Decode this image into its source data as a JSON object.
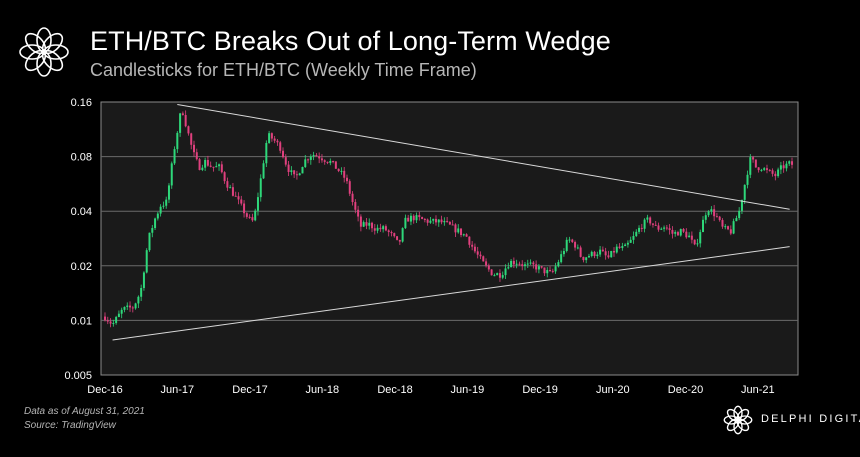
{
  "header": {
    "title": "ETH/BTC Breaks Out of Long-Term Wedge",
    "subtitle": "Candlesticks for ETH/BTC (Weekly Time Frame)"
  },
  "footer": {
    "note_date": "Data as of August 31, 2021",
    "note_source": "Source: TradingView",
    "brand": "DELPHI DIGITAL"
  },
  "colors": {
    "up": "#2ed87a",
    "down": "#e0407e",
    "grid": "#6a6a6a",
    "plot_bg": "#1a1a1a",
    "trendline": "#d9d9d9"
  },
  "icons": [
    "delphi-flower-logo-icon",
    "delphi-digital-logo-icon"
  ],
  "chart_data": {
    "type": "candlestick",
    "title": "ETH/BTC Breaks Out of Long-Term Wedge",
    "subtitle": "Candlesticks for ETH/BTC (Weekly Time Frame)",
    "scale": "log",
    "ylim": [
      0.005,
      0.16
    ],
    "yticks": [
      0.005,
      0.01,
      0.02,
      0.04,
      0.08,
      0.16
    ],
    "ytick_labels": [
      "0.005",
      "0.01",
      "0.02",
      "0.04",
      "0.08",
      "0.16"
    ],
    "xticks": [
      {
        "label": "Dec-16",
        "date": "2016-12-01"
      },
      {
        "label": "Jun-17",
        "date": "2017-06-01"
      },
      {
        "label": "Dec-17",
        "date": "2017-12-01"
      },
      {
        "label": "Jun-18",
        "date": "2018-06-01"
      },
      {
        "label": "Dec-18",
        "date": "2018-12-01"
      },
      {
        "label": "Jun-19",
        "date": "2019-06-01"
      },
      {
        "label": "Dec-19",
        "date": "2019-12-01"
      },
      {
        "label": "Jun-20",
        "date": "2020-06-01"
      },
      {
        "label": "Dec-20",
        "date": "2020-12-01"
      },
      {
        "label": "Jun-21",
        "date": "2021-06-01"
      }
    ],
    "xlim": [
      "2016-12-01",
      "2021-08-31"
    ],
    "grid": true,
    "close_path": [
      [
        "2016-12-01",
        0.0105
      ],
      [
        "2016-12-20",
        0.0095
      ],
      [
        "2017-01-15",
        0.0115
      ],
      [
        "2017-02-10",
        0.0118
      ],
      [
        "2017-03-01",
        0.0145
      ],
      [
        "2017-03-20",
        0.028
      ],
      [
        "2017-04-05",
        0.036
      ],
      [
        "2017-04-20",
        0.043
      ],
      [
        "2017-05-05",
        0.045
      ],
      [
        "2017-05-25",
        0.09
      ],
      [
        "2017-06-12",
        0.15
      ],
      [
        "2017-06-25",
        0.115
      ],
      [
        "2017-07-10",
        0.085
      ],
      [
        "2017-07-25",
        0.07
      ],
      [
        "2017-08-10",
        0.075
      ],
      [
        "2017-08-28",
        0.07
      ],
      [
        "2017-09-15",
        0.07
      ],
      [
        "2017-10-01",
        0.058
      ],
      [
        "2017-10-20",
        0.05
      ],
      [
        "2017-11-10",
        0.042
      ],
      [
        "2017-11-28",
        0.036
      ],
      [
        "2017-12-10",
        0.035
      ],
      [
        "2017-12-28",
        0.06
      ],
      [
        "2018-01-14",
        0.105
      ],
      [
        "2018-01-28",
        0.1
      ],
      [
        "2018-02-15",
        0.09
      ],
      [
        "2018-03-05",
        0.07
      ],
      [
        "2018-03-25",
        0.06
      ],
      [
        "2018-04-15",
        0.075
      ],
      [
        "2018-05-05",
        0.083
      ],
      [
        "2018-05-25",
        0.08
      ],
      [
        "2018-06-20",
        0.075
      ],
      [
        "2018-07-10",
        0.068
      ],
      [
        "2018-07-30",
        0.06
      ],
      [
        "2018-08-20",
        0.042
      ],
      [
        "2018-09-05",
        0.033
      ],
      [
        "2018-09-25",
        0.034
      ],
      [
        "2018-10-15",
        0.032
      ],
      [
        "2018-11-05",
        0.032
      ],
      [
        "2018-11-25",
        0.029
      ],
      [
        "2018-12-10",
        0.026
      ],
      [
        "2018-12-28",
        0.036
      ],
      [
        "2019-01-15",
        0.037
      ],
      [
        "2019-02-05",
        0.036
      ],
      [
        "2019-03-01",
        0.035
      ],
      [
        "2019-03-25",
        0.035
      ],
      [
        "2019-04-20",
        0.033
      ],
      [
        "2019-05-10",
        0.031
      ],
      [
        "2019-05-30",
        0.029
      ],
      [
        "2019-06-20",
        0.024
      ],
      [
        "2019-07-15",
        0.02
      ],
      [
        "2019-08-05",
        0.018
      ],
      [
        "2019-08-25",
        0.018
      ],
      [
        "2019-09-15",
        0.021
      ],
      [
        "2019-10-05",
        0.021
      ],
      [
        "2019-10-25",
        0.02
      ],
      [
        "2019-11-15",
        0.02
      ],
      [
        "2019-12-05",
        0.019
      ],
      [
        "2019-12-30",
        0.018
      ],
      [
        "2020-01-20",
        0.022
      ],
      [
        "2020-02-10",
        0.028
      ],
      [
        "2020-02-28",
        0.026
      ],
      [
        "2020-03-15",
        0.022
      ],
      [
        "2020-04-05",
        0.023
      ],
      [
        "2020-04-30",
        0.024
      ],
      [
        "2020-05-20",
        0.022
      ],
      [
        "2020-06-10",
        0.025
      ],
      [
        "2020-07-01",
        0.025
      ],
      [
        "2020-07-20",
        0.028
      ],
      [
        "2020-08-10",
        0.033
      ],
      [
        "2020-08-30",
        0.036
      ],
      [
        "2020-09-20",
        0.032
      ],
      [
        "2020-10-10",
        0.033
      ],
      [
        "2020-10-30",
        0.03
      ],
      [
        "2020-11-20",
        0.031
      ],
      [
        "2020-12-10",
        0.029
      ],
      [
        "2020-12-25",
        0.025
      ],
      [
        "2021-01-10",
        0.033
      ],
      [
        "2021-01-25",
        0.042
      ],
      [
        "2021-02-15",
        0.038
      ],
      [
        "2021-03-05",
        0.032
      ],
      [
        "2021-03-25",
        0.031
      ],
      [
        "2021-04-15",
        0.04
      ],
      [
        "2021-05-05",
        0.065
      ],
      [
        "2021-05-15",
        0.08
      ],
      [
        "2021-05-25",
        0.07
      ],
      [
        "2021-06-10",
        0.07
      ],
      [
        "2021-06-25",
        0.066
      ],
      [
        "2021-07-15",
        0.063
      ],
      [
        "2021-08-01",
        0.07
      ],
      [
        "2021-08-20",
        0.073
      ],
      [
        "2021-08-31",
        0.072
      ]
    ],
    "trendlines": [
      {
        "from": [
          "2017-06-01",
          0.155
        ],
        "to": [
          "2021-08-20",
          0.041
        ]
      },
      {
        "from": [
          "2016-12-20",
          0.0078
        ],
        "to": [
          "2021-08-20",
          0.0255
        ]
      }
    ]
  }
}
